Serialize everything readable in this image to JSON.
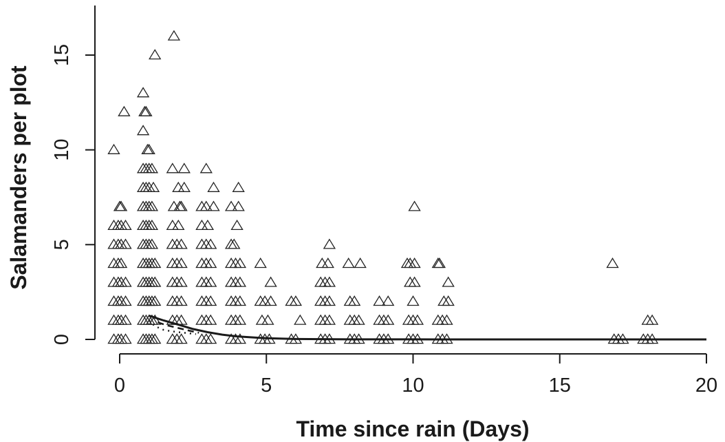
{
  "chart_data": {
    "type": "scatter",
    "title": "",
    "xlabel": "Time since rain (Days)",
    "ylabel": "Salamanders per plot",
    "xlim": [
      -0.4,
      20
    ],
    "ylim": [
      0,
      17
    ],
    "xticks": [
      0,
      5,
      10,
      15,
      20
    ],
    "yticks": [
      0,
      5,
      10,
      15
    ],
    "x_tick_labels": [
      "0",
      "5",
      "10",
      "15",
      "20"
    ],
    "y_tick_labels": [
      "0",
      "5",
      "10",
      "15"
    ],
    "grid": false,
    "legend": "none",
    "marker": "open-triangle",
    "series": [
      {
        "points": [
          [
            -0.2,
            10
          ],
          [
            0.15,
            12
          ],
          [
            1.2,
            15
          ],
          [
            1.85,
            16
          ],
          [
            0.8,
            13
          ],
          [
            0.85,
            12
          ],
          [
            0.9,
            12
          ],
          [
            0.8,
            11
          ],
          [
            0.95,
            10
          ],
          [
            1.0,
            10
          ],
          [
            0.0,
            7
          ],
          [
            0.05,
            7
          ],
          [
            0.8,
            9
          ],
          [
            0.9,
            9
          ],
          [
            1.0,
            9
          ],
          [
            1.1,
            9
          ],
          [
            1.8,
            9
          ],
          [
            2.2,
            9
          ],
          [
            2.95,
            9
          ],
          [
            0.8,
            8
          ],
          [
            0.9,
            8
          ],
          [
            1.0,
            8
          ],
          [
            1.15,
            8
          ],
          [
            2.0,
            8
          ],
          [
            2.2,
            8
          ],
          [
            3.2,
            8
          ],
          [
            4.05,
            8
          ],
          [
            0.8,
            7
          ],
          [
            0.9,
            7
          ],
          [
            1.0,
            7
          ],
          [
            1.1,
            7
          ],
          [
            1.85,
            7
          ],
          [
            2.05,
            7
          ],
          [
            2.1,
            7
          ],
          [
            2.8,
            7
          ],
          [
            2.95,
            7
          ],
          [
            3.2,
            7
          ],
          [
            3.8,
            7
          ],
          [
            4.05,
            7
          ],
          [
            10.05,
            7
          ],
          [
            -0.2,
            6
          ],
          [
            -0.05,
            6
          ],
          [
            0.05,
            6
          ],
          [
            0.2,
            6
          ],
          [
            0.8,
            6
          ],
          [
            0.9,
            6
          ],
          [
            1.0,
            6
          ],
          [
            1.1,
            6
          ],
          [
            1.8,
            6
          ],
          [
            2.0,
            6
          ],
          [
            2.8,
            6
          ],
          [
            3.0,
            6
          ],
          [
            4.0,
            6
          ],
          [
            -0.2,
            5
          ],
          [
            -0.05,
            5
          ],
          [
            0.05,
            5
          ],
          [
            0.2,
            5
          ],
          [
            0.8,
            5
          ],
          [
            0.9,
            5
          ],
          [
            1.0,
            5
          ],
          [
            1.1,
            5
          ],
          [
            1.8,
            5
          ],
          [
            1.95,
            5
          ],
          [
            2.1,
            5
          ],
          [
            2.8,
            5
          ],
          [
            2.95,
            5
          ],
          [
            3.1,
            5
          ],
          [
            3.8,
            5
          ],
          [
            3.9,
            5
          ],
          [
            7.15,
            5
          ],
          [
            -0.2,
            4
          ],
          [
            -0.05,
            4
          ],
          [
            0.05,
            4
          ],
          [
            0.8,
            4
          ],
          [
            0.9,
            4
          ],
          [
            1.0,
            4
          ],
          [
            1.1,
            4
          ],
          [
            1.2,
            4
          ],
          [
            1.8,
            4
          ],
          [
            1.95,
            4
          ],
          [
            2.1,
            4
          ],
          [
            2.8,
            4
          ],
          [
            2.95,
            4
          ],
          [
            3.1,
            4
          ],
          [
            3.8,
            4
          ],
          [
            3.95,
            4
          ],
          [
            4.1,
            4
          ],
          [
            4.8,
            4
          ],
          [
            6.9,
            4
          ],
          [
            7.1,
            4
          ],
          [
            7.8,
            4
          ],
          [
            8.2,
            4
          ],
          [
            9.8,
            4
          ],
          [
            9.9,
            4
          ],
          [
            10.05,
            4
          ],
          [
            10.85,
            4
          ],
          [
            10.9,
            4
          ],
          [
            16.8,
            4
          ],
          [
            -0.2,
            3
          ],
          [
            -0.05,
            3
          ],
          [
            0.05,
            3
          ],
          [
            0.2,
            3
          ],
          [
            0.8,
            3
          ],
          [
            0.9,
            3
          ],
          [
            1.0,
            3
          ],
          [
            1.1,
            3
          ],
          [
            1.2,
            3
          ],
          [
            1.8,
            3
          ],
          [
            1.95,
            3
          ],
          [
            2.1,
            3
          ],
          [
            2.8,
            3
          ],
          [
            2.95,
            3
          ],
          [
            3.1,
            3
          ],
          [
            3.8,
            3
          ],
          [
            3.95,
            3
          ],
          [
            4.1,
            3
          ],
          [
            5.15,
            3
          ],
          [
            6.85,
            3
          ],
          [
            7.0,
            3
          ],
          [
            7.15,
            3
          ],
          [
            9.9,
            3
          ],
          [
            10.05,
            3
          ],
          [
            11.2,
            3
          ],
          [
            -0.2,
            2
          ],
          [
            -0.05,
            2
          ],
          [
            0.05,
            2
          ],
          [
            0.2,
            2
          ],
          [
            0.8,
            2
          ],
          [
            0.9,
            2
          ],
          [
            1.0,
            2
          ],
          [
            1.1,
            2
          ],
          [
            1.2,
            2
          ],
          [
            1.8,
            2
          ],
          [
            1.95,
            2
          ],
          [
            2.1,
            2
          ],
          [
            2.8,
            2
          ],
          [
            2.95,
            2
          ],
          [
            3.1,
            2
          ],
          [
            3.8,
            2
          ],
          [
            3.95,
            2
          ],
          [
            4.1,
            2
          ],
          [
            4.8,
            2
          ],
          [
            4.95,
            2
          ],
          [
            5.15,
            2
          ],
          [
            5.85,
            2
          ],
          [
            6.0,
            2
          ],
          [
            6.85,
            2
          ],
          [
            7.0,
            2
          ],
          [
            7.15,
            2
          ],
          [
            7.85,
            2
          ],
          [
            8.0,
            2
          ],
          [
            8.85,
            2
          ],
          [
            9.15,
            2
          ],
          [
            10.0,
            2
          ],
          [
            11.05,
            2
          ],
          [
            11.2,
            2
          ],
          [
            -0.2,
            1
          ],
          [
            -0.05,
            1
          ],
          [
            0.05,
            1
          ],
          [
            0.2,
            1
          ],
          [
            0.8,
            1
          ],
          [
            0.9,
            1
          ],
          [
            1.0,
            1
          ],
          [
            1.1,
            1
          ],
          [
            1.2,
            1
          ],
          [
            1.8,
            1
          ],
          [
            1.95,
            1
          ],
          [
            2.1,
            1
          ],
          [
            2.8,
            1
          ],
          [
            2.95,
            1
          ],
          [
            3.1,
            1
          ],
          [
            3.8,
            1
          ],
          [
            3.95,
            1
          ],
          [
            4.1,
            1
          ],
          [
            4.85,
            1
          ],
          [
            5.05,
            1
          ],
          [
            6.15,
            1
          ],
          [
            6.85,
            1
          ],
          [
            7.0,
            1
          ],
          [
            7.15,
            1
          ],
          [
            7.85,
            1
          ],
          [
            8.0,
            1
          ],
          [
            8.15,
            1
          ],
          [
            8.85,
            1
          ],
          [
            9.0,
            1
          ],
          [
            9.15,
            1
          ],
          [
            9.85,
            1
          ],
          [
            10.0,
            1
          ],
          [
            10.15,
            1
          ],
          [
            10.85,
            1
          ],
          [
            11.0,
            1
          ],
          [
            11.15,
            1
          ],
          [
            18.0,
            1
          ],
          [
            18.15,
            1
          ],
          [
            -0.2,
            0
          ],
          [
            -0.05,
            0
          ],
          [
            0.05,
            0
          ],
          [
            0.2,
            0
          ],
          [
            0.8,
            0
          ],
          [
            0.9,
            0
          ],
          [
            1.0,
            0
          ],
          [
            1.1,
            0
          ],
          [
            1.2,
            0
          ],
          [
            1.8,
            0
          ],
          [
            1.95,
            0
          ],
          [
            2.1,
            0
          ],
          [
            2.8,
            0
          ],
          [
            2.95,
            0
          ],
          [
            3.1,
            0
          ],
          [
            3.8,
            0
          ],
          [
            3.95,
            0
          ],
          [
            4.1,
            0
          ],
          [
            4.8,
            0
          ],
          [
            4.95,
            0
          ],
          [
            5.1,
            0
          ],
          [
            5.85,
            0
          ],
          [
            6.0,
            0
          ],
          [
            6.85,
            0
          ],
          [
            7.0,
            0
          ],
          [
            7.15,
            0
          ],
          [
            7.85,
            0
          ],
          [
            8.0,
            0
          ],
          [
            8.15,
            0
          ],
          [
            8.85,
            0
          ],
          [
            9.0,
            0
          ],
          [
            9.15,
            0
          ],
          [
            9.85,
            0
          ],
          [
            10.0,
            0
          ],
          [
            10.15,
            0
          ],
          [
            10.85,
            0
          ],
          [
            11.0,
            0
          ],
          [
            11.15,
            0
          ],
          [
            16.85,
            0
          ],
          [
            17.0,
            0
          ],
          [
            17.15,
            0
          ],
          [
            17.85,
            0
          ],
          [
            18.0,
            0
          ],
          [
            18.15,
            0
          ]
        ]
      }
    ],
    "fit_lines": [
      {
        "style": "solid",
        "points": [
          [
            1.0,
            1.25
          ],
          [
            1.5,
            1.0
          ],
          [
            2.0,
            0.78
          ],
          [
            2.5,
            0.55
          ],
          [
            3.0,
            0.38
          ],
          [
            3.5,
            0.25
          ],
          [
            4.0,
            0.16
          ],
          [
            5.0,
            0.06
          ],
          [
            6.0,
            0.02
          ],
          [
            8.0,
            0.005
          ],
          [
            10.0,
            0.002
          ],
          [
            12.0,
            0.0
          ],
          [
            20.0,
            0.0
          ]
        ]
      },
      {
        "style": "dashed",
        "points": [
          [
            1.3,
            0.9
          ],
          [
            1.6,
            0.75
          ],
          [
            2.0,
            0.6
          ],
          [
            2.4,
            0.45
          ],
          [
            2.7,
            0.35
          ]
        ]
      },
      {
        "style": "dotted",
        "points": [
          [
            1.0,
            1.0
          ],
          [
            1.2,
            0.7
          ],
          [
            1.5,
            0.5
          ],
          [
            1.8,
            0.42
          ],
          [
            2.2,
            0.35
          ],
          [
            2.6,
            0.28
          ]
        ]
      }
    ]
  }
}
